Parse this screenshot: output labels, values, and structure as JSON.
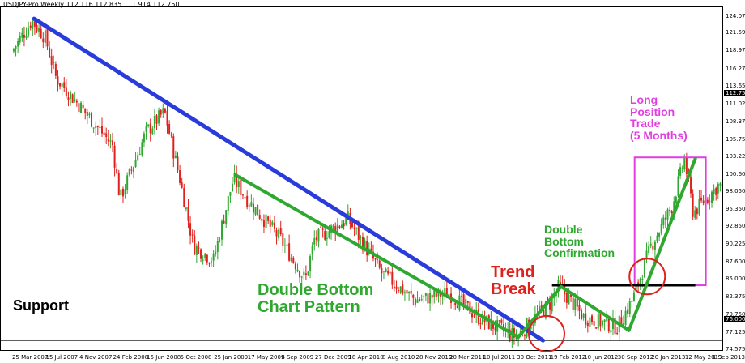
{
  "chart_data": {
    "type": "candlestick",
    "title": "USDJPY-Pro,Weekly  112.116 112.835 111.914 112.750",
    "current_price_label": "112.750",
    "support_price_label": "76.000",
    "y_ticks": [
      "124.070",
      "121.595",
      "118.975",
      "116.275",
      "113.650",
      "111.025",
      "108.375",
      "105.750",
      "103.225",
      "100.600",
      "98.050",
      "95.350",
      "92.850",
      "90.225",
      "87.600",
      "85.000",
      "82.375",
      "79.750",
      "77.125",
      "74.575"
    ],
    "ylim": [
      74.575,
      125.5
    ],
    "x_ticks": [
      "25 Mar 2007",
      "15 Jul 2007",
      "4 Nov 2007",
      "24 Feb 2008",
      "15 Jun 2008",
      "5 Oct 2008",
      "25 Jan 2009",
      "17 May 2009",
      "6 Sep 2009",
      "27 Dec 2009",
      "18 Apr 2010",
      "8 Aug 2010",
      "28 Nov 2010",
      "20 Mar 2011",
      "10 Jul 2011",
      "30 Oct 2011",
      "19 Feb 2012",
      "10 Jun 2012",
      "30 Sep 2012",
      "20 Jan 2013",
      "12 May 2013",
      "1 Sep 2013"
    ],
    "price_path": [
      {
        "x": "25 Mar 2007",
        "y": 118.9
      },
      {
        "x": "1 Jun 2007",
        "y": 123.5
      },
      {
        "x": "15 Jul 2007",
        "y": 121.0
      },
      {
        "x": "20 Aug 2007",
        "y": 115.0
      },
      {
        "x": "4 Nov 2007",
        "y": 111.0
      },
      {
        "x": "24 Feb 2008",
        "y": 105.0
      },
      {
        "x": "20 Mar 2008",
        "y": 97.0
      },
      {
        "x": "15 Jun 2008",
        "y": 107.0
      },
      {
        "x": "15 Aug 2008",
        "y": 110.0
      },
      {
        "x": "5 Oct 2008",
        "y": 100.0
      },
      {
        "x": "20 Nov 2008",
        "y": 90.0
      },
      {
        "x": "25 Jan 2009",
        "y": 88.0
      },
      {
        "x": "1 Apr 2009",
        "y": 100.0
      },
      {
        "x": "17 May 2009",
        "y": 97.0
      },
      {
        "x": "6 Sep 2009",
        "y": 91.0
      },
      {
        "x": "27 Nov 2009",
        "y": 85.0
      },
      {
        "x": "27 Dec 2009",
        "y": 91.0
      },
      {
        "x": "18 Apr 2010",
        "y": 94.0
      },
      {
        "x": "8 Aug 2010",
        "y": 86.0
      },
      {
        "x": "28 Nov 2010",
        "y": 82.0
      },
      {
        "x": "20 Mar 2011",
        "y": 83.0
      },
      {
        "x": "10 Jul 2011",
        "y": 79.0
      },
      {
        "x": "30 Oct 2011",
        "y": 76.5
      },
      {
        "x": "1 Dec 2011",
        "y": 78.0
      },
      {
        "x": "19 Feb 2012",
        "y": 81.5
      },
      {
        "x": "20 Mar 2012",
        "y": 84.0
      },
      {
        "x": "10 Jun 2012",
        "y": 79.5
      },
      {
        "x": "30 Sep 2012",
        "y": 78.0
      },
      {
        "x": "20 Nov 2012",
        "y": 82.0
      },
      {
        "x": "20 Jan 2013",
        "y": 90.0
      },
      {
        "x": "1 Apr 2013",
        "y": 96.0
      },
      {
        "x": "12 May 2013",
        "y": 103.0
      },
      {
        "x": "10 Jun 2013",
        "y": 95.0
      },
      {
        "x": "1 Sep 2013",
        "y": 99.0
      }
    ],
    "trendlines": [
      {
        "name": "downtrend-line",
        "color": "#2a3bdc",
        "from": {
          "x": "1 Jun 2007",
          "y": 123.8
        },
        "to": {
          "x": "20 Jan 2012",
          "y": 76.0
        }
      },
      {
        "name": "channel-line",
        "color": "#2fa82f",
        "from": {
          "x": "1 Apr 2009",
          "y": 100.6
        },
        "to": {
          "x": "30 Oct 2011",
          "y": 76.5
        }
      },
      {
        "name": "double-bottom-left",
        "color": "#2fa82f",
        "from": {
          "x": "30 Oct 2011",
          "y": 76.5
        },
        "to": {
          "x": "20 Mar 2012",
          "y": 84.0
        }
      },
      {
        "name": "double-bottom-right",
        "color": "#2fa82f",
        "from": {
          "x": "20 Mar 2012",
          "y": 84.0
        },
        "to": {
          "x": "1 Nov 2012",
          "y": 77.5
        }
      },
      {
        "name": "breakout-line",
        "color": "#2fa82f",
        "from": {
          "x": "1 Nov 2012",
          "y": 77.5
        },
        "to": {
          "x": "10 Jun 2013",
          "y": 103.0
        }
      }
    ],
    "neckline": {
      "color": "#000000",
      "y": 84.2,
      "from": "19 Feb 2012",
      "to": "10 Jun 2013"
    },
    "support_line": {
      "color": "#000000",
      "y": 76.0
    },
    "circles": [
      {
        "name": "trend-break-circle",
        "x": "1 Feb 2012",
        "y": 77.0,
        "color": "#e0201c"
      },
      {
        "name": "confirmation-circle",
        "x": "1 Jan 2013",
        "y": 85.5,
        "color": "#e0201c"
      }
    ],
    "trade_box": {
      "color": "#e23ee2",
      "from": "20 Nov 2012",
      "to": "15 Jul 2013",
      "y_top": 103.2,
      "y_bottom": 84.2
    },
    "annotations": {
      "double_bottom_pattern": "Double Bottom\nChart Pattern",
      "double_bottom_confirmation": "Double\nBottom\nConfirmation",
      "trend_break": "Trend\nBreak",
      "long_position_trade": "Long\nPosition\nTrade\n(5 Months)",
      "support": "Support"
    },
    "colors": {
      "bull": "#2fa82f",
      "bear": "#e0201c",
      "axis": "#000000"
    }
  }
}
